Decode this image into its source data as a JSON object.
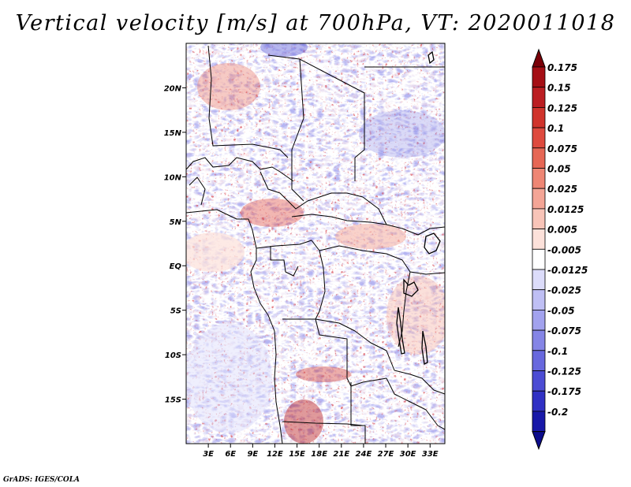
{
  "title": "Vertical velocity [m/s] at 700hPa, VT: 2020011018",
  "footer": "GrADS: IGES/COLA",
  "map": {
    "variable": "Vertical velocity",
    "units": "m/s",
    "level": "700hPa",
    "valid_time": "2020011018",
    "lon_range": [
      0,
      35
    ],
    "lat_range": [
      -20,
      25
    ],
    "lat_ticks": [
      {
        "lat": 20,
        "label": "20N"
      },
      {
        "lat": 15,
        "label": "15N"
      },
      {
        "lat": 10,
        "label": "10N"
      },
      {
        "lat": 5,
        "label": "5N"
      },
      {
        "lat": 0,
        "label": "EQ"
      },
      {
        "lat": -5,
        "label": "5S"
      },
      {
        "lat": -10,
        "label": "10S"
      },
      {
        "lat": -15,
        "label": "15S"
      }
    ],
    "lon_ticks": [
      {
        "lon": 3,
        "label": "3E"
      },
      {
        "lon": 6,
        "label": "6E"
      },
      {
        "lon": 9,
        "label": "9E"
      },
      {
        "lon": 12,
        "label": "12E"
      },
      {
        "lon": 15,
        "label": "15E"
      },
      {
        "lon": 18,
        "label": "18E"
      },
      {
        "lon": 21,
        "label": "21E"
      },
      {
        "lon": 24,
        "label": "24E"
      },
      {
        "lon": 27,
        "label": "27E"
      },
      {
        "lon": 30,
        "label": "30E"
      },
      {
        "lon": 33,
        "label": "33E"
      }
    ]
  },
  "colorbar": {
    "bins": [
      {
        "label": "0.175",
        "color": "#a50f15"
      },
      {
        "label": "0.15",
        "color": "#bb1e22"
      },
      {
        "label": "0.125",
        "color": "#d0342c"
      },
      {
        "label": "0.1",
        "color": "#de4a3e"
      },
      {
        "label": "0.075",
        "color": "#e66755"
      },
      {
        "label": "0.05",
        "color": "#ee8674"
      },
      {
        "label": "0.025",
        "color": "#f4a596"
      },
      {
        "label": "0.0125",
        "color": "#f8c4b8"
      },
      {
        "label": "0.005",
        "color": "#fce1da"
      },
      {
        "label": "-0.005",
        "color": "#ffffff"
      },
      {
        "label": "-0.0125",
        "color": "#dcdcfa"
      },
      {
        "label": "-0.025",
        "color": "#bfbff4"
      },
      {
        "label": "-0.05",
        "color": "#a2a2ee"
      },
      {
        "label": "-0.075",
        "color": "#8585e6"
      },
      {
        "label": "-0.1",
        "color": "#6868de"
      },
      {
        "label": "-0.125",
        "color": "#4c4cd4"
      },
      {
        "label": "-0.175",
        "color": "#3030c4"
      },
      {
        "label": "-0.2",
        "color": "#1818a8"
      }
    ],
    "top_color": "#7a0008",
    "bottom_color": "#0c0c8c"
  }
}
